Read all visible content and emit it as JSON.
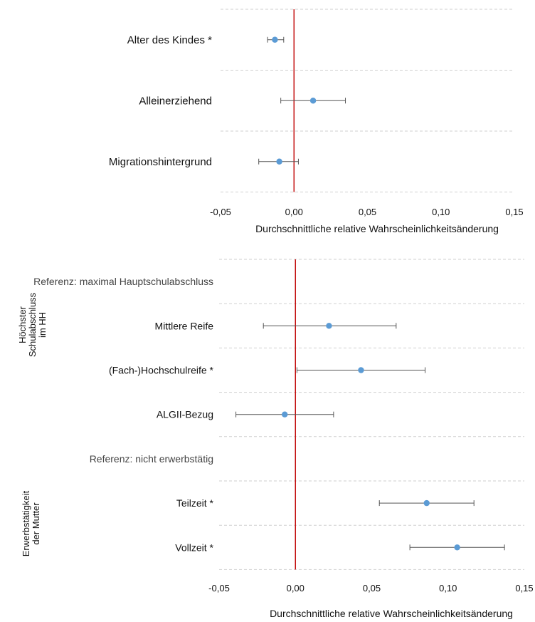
{
  "chart_data": [
    {
      "type": "errorbar",
      "xlabel": "Durchschnittliche relative Wahrscheinlichkeitsänderung",
      "xlim": [
        -0.05,
        0.15
      ],
      "xticks": [
        "-0,05",
        "0,00",
        "0,05",
        "0,10",
        "0,15"
      ],
      "reference_line": 0,
      "rows": [
        {
          "label": "Alter des Kindes *",
          "value": -0.013,
          "low": -0.018,
          "high": -0.007
        },
        {
          "label": "Alleinerziehend",
          "value": 0.013,
          "low": -0.009,
          "high": 0.035
        },
        {
          "label": "Migrationshintergrund",
          "value": -0.01,
          "low": -0.024,
          "high": 0.003
        }
      ]
    },
    {
      "type": "errorbar",
      "xlabel": "Durchschnittliche relative Wahrscheinlichkeitsänderung",
      "xlim": [
        -0.05,
        0.15
      ],
      "xticks": [
        "-0,05",
        "0,00",
        "0,05",
        "0,10",
        "0,15"
      ],
      "reference_line": 0,
      "groups": [
        {
          "label": "Höchster Schulabschluss im HH",
          "lines": [
            "Höchster",
            "Schulabschluss",
            "im HH"
          ]
        },
        {
          "label": "Erwerbstätigkeit der Mutter",
          "lines": [
            "Erwerbstätigkeit",
            "der Mutter"
          ]
        }
      ],
      "rows": [
        {
          "label": "Referenz: maximal Hauptschulabschluss",
          "reference": true
        },
        {
          "label": "Mittlere Reife",
          "value": 0.022,
          "low": -0.021,
          "high": 0.066
        },
        {
          "label": "(Fach-)Hochschulreife *",
          "value": 0.043,
          "low": 0.001,
          "high": 0.085
        },
        {
          "label": "ALGII-Bezug",
          "value": -0.007,
          "low": -0.039,
          "high": 0.025
        },
        {
          "label": "Referenz: nicht erwerbstätig",
          "reference": true
        },
        {
          "label": "Teilzeit *",
          "value": 0.086,
          "low": 0.055,
          "high": 0.117
        },
        {
          "label": "Vollzeit *",
          "value": 0.106,
          "low": 0.075,
          "high": 0.137
        }
      ]
    }
  ],
  "colors": {
    "point": "#5b9bd5",
    "refline": "#c00000",
    "errorbar": "#555555",
    "grid": "#cfcfcf"
  }
}
